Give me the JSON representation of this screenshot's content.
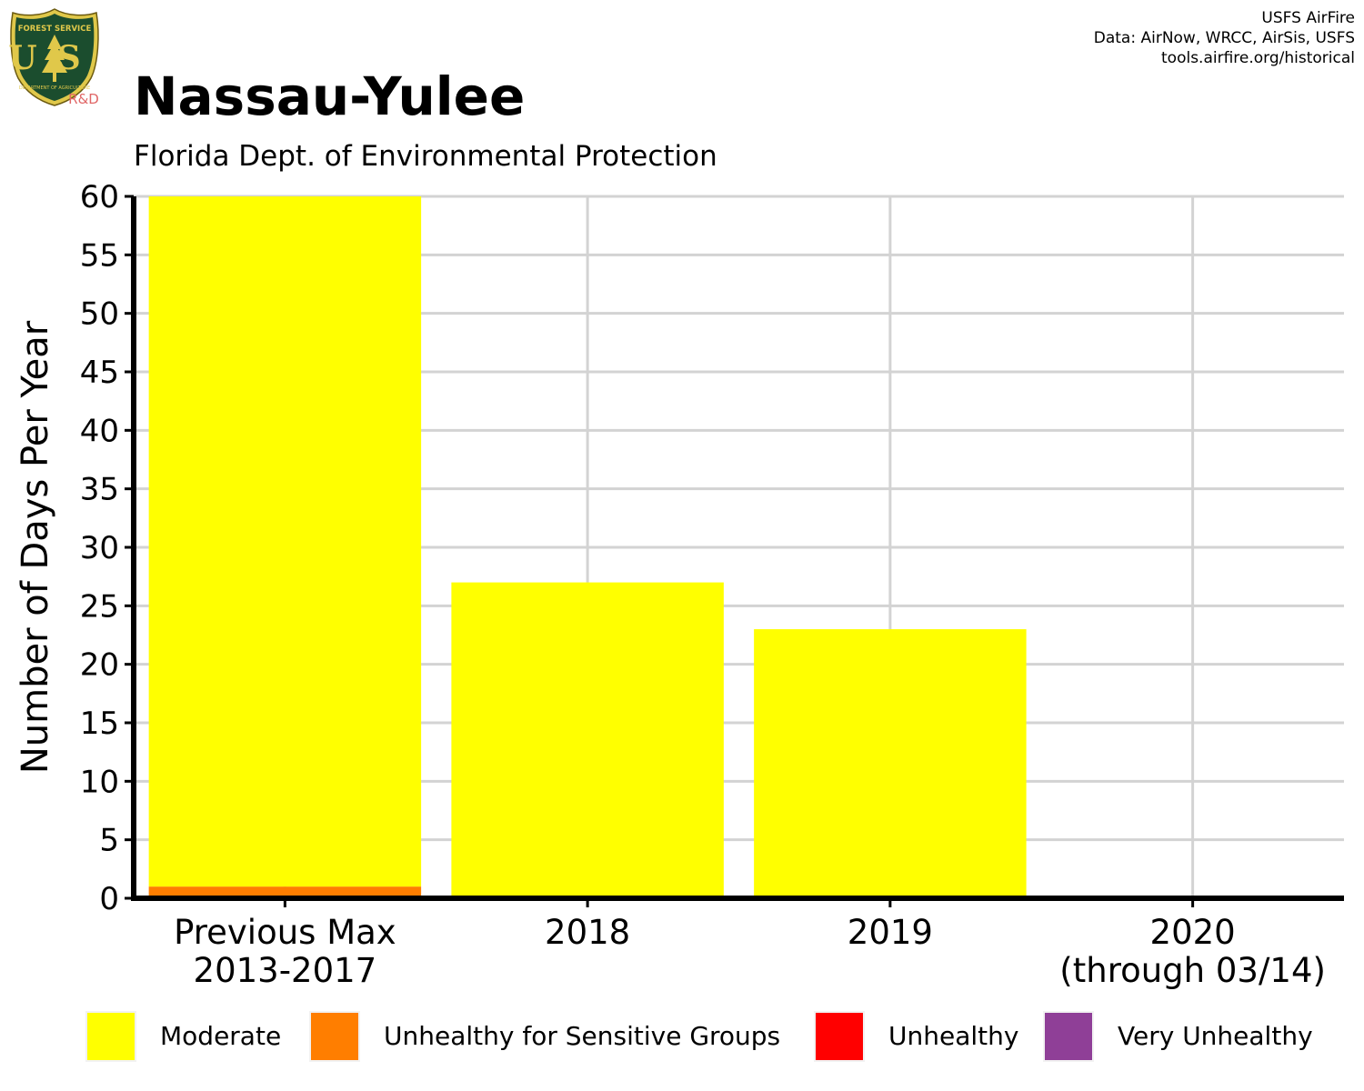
{
  "header": {
    "title": "Nassau-Yulee",
    "subtitle": "Florida Dept. of Environmental Protection",
    "credits": [
      "USFS AirFire",
      "Data: AirNow, WRCC, AirSis, USFS",
      "tools.airfire.org/historical"
    ]
  },
  "logo": {
    "icon": "forest-service-shield-icon",
    "top_text": "FOREST SERVICE",
    "letters": "US",
    "bottom_text": "DEPARTMENT OF AGRICULTURE",
    "badge": "R&D",
    "colors": {
      "shield": "#1b4d2e",
      "trim": "#e0c84a",
      "badge": "#e06666"
    }
  },
  "chart_data": {
    "type": "bar",
    "stacked": true,
    "title": "Nassau-Yulee",
    "subtitle": "Florida Dept. of Environmental Protection",
    "xlabel": "",
    "ylabel": "Number of Days Per Year",
    "ylim": [
      0,
      60
    ],
    "yticks": [
      0,
      5,
      10,
      15,
      20,
      25,
      30,
      35,
      40,
      45,
      50,
      55,
      60
    ],
    "categories": [
      [
        "Previous Max",
        "2013-2017"
      ],
      [
        "2018"
      ],
      [
        "2019"
      ],
      [
        "2020",
        "(through 03/14)"
      ]
    ],
    "series": [
      {
        "name": "Moderate",
        "color": "#ffff00",
        "values": [
          59,
          27,
          23,
          0
        ]
      },
      {
        "name": "Unhealthy for Sensitive Groups",
        "color": "#ff7e00",
        "values": [
          1,
          0,
          0,
          0
        ]
      },
      {
        "name": "Unhealthy",
        "color": "#ff0000",
        "values": [
          0,
          0,
          0,
          0
        ]
      },
      {
        "name": "Very Unhealthy",
        "color": "#8f3f97",
        "values": [
          0,
          0,
          0,
          0
        ]
      }
    ],
    "grid": true,
    "legend": "bottom"
  }
}
